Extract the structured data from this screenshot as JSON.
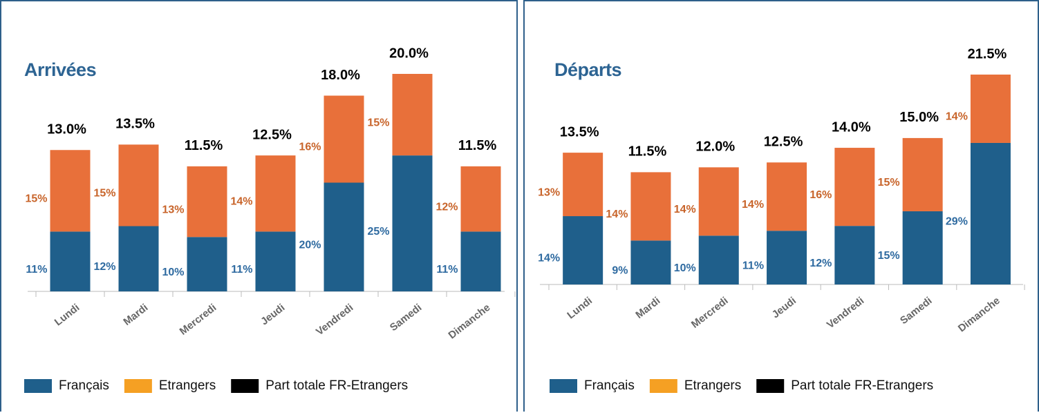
{
  "chart_data": [
    {
      "type": "stacked_bar",
      "title": "Arrivées",
      "categories": [
        "Lundi",
        "Mardi",
        "Mercredi",
        "Jeudi",
        "Vendredi",
        "Samedi",
        "Dimanche"
      ],
      "series": [
        {
          "name": "Français",
          "color": "#1f5f8b",
          "legend_color": "#1f5f8b",
          "label_color": "#2e6aa0",
          "values": [
            11,
            12,
            10,
            11,
            20,
            25,
            11
          ],
          "value_labels": [
            "11%",
            "12%",
            "10%",
            "11%",
            "20%",
            "25%",
            "11%"
          ]
        },
        {
          "name": "Etrangers",
          "color": "#e8703a",
          "legend_color": "#f5a023",
          "label_color": "#c8642a",
          "values": [
            15,
            15,
            13,
            14,
            16,
            15,
            12
          ],
          "value_labels": [
            "15%",
            "15%",
            "13%",
            "14%",
            "16%",
            "15%",
            "12%"
          ]
        },
        {
          "name": "Part totale FR-Etrangers",
          "color": "#000000",
          "legend_color": "#000000",
          "label_color": "#000000",
          "values": [
            13.0,
            13.5,
            11.5,
            12.5,
            18.0,
            20.0,
            11.5
          ],
          "value_labels": [
            "13.0%",
            "13.5%",
            "11.5%",
            "12.5%",
            "18.0%",
            "20.0%",
            "11.5%"
          ]
        }
      ]
    },
    {
      "type": "stacked_bar",
      "title": "Départs",
      "categories": [
        "Lundi",
        "Mardi",
        "Mercredi",
        "Jeudi",
        "Vendredi",
        "Samedi",
        "Dimanche"
      ],
      "series": [
        {
          "name": "Français",
          "color": "#1f5f8b",
          "legend_color": "#1f5f8b",
          "label_color": "#2e6aa0",
          "values": [
            14,
            9,
            10,
            11,
            12,
            15,
            29
          ],
          "value_labels": [
            "14%",
            "9%",
            "10%",
            "11%",
            "12%",
            "15%",
            "29%"
          ]
        },
        {
          "name": "Etrangers",
          "color": "#e8703a",
          "legend_color": "#f5a023",
          "label_color": "#c8642a",
          "values": [
            13,
            14,
            14,
            14,
            16,
            15,
            14
          ],
          "value_labels": [
            "13%",
            "14%",
            "14%",
            "14%",
            "16%",
            "15%",
            "14%"
          ]
        },
        {
          "name": "Part totale FR-Etrangers",
          "color": "#000000",
          "legend_color": "#000000",
          "label_color": "#000000",
          "values": [
            13.5,
            11.5,
            12.0,
            12.5,
            14.0,
            15.0,
            21.5
          ],
          "value_labels": [
            "13.5%",
            "11.5%",
            "12.0%",
            "12.5%",
            "14.0%",
            "15.0%",
            "21.5%"
          ]
        }
      ]
    }
  ]
}
